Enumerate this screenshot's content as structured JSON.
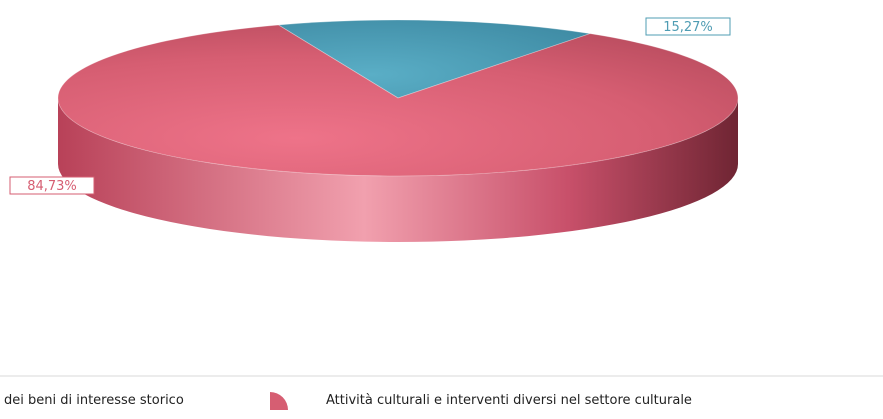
{
  "chart_data": {
    "type": "pie",
    "style": "3d-elliptical",
    "slices": [
      {
        "legend_label": "dei beni di interesse storico",
        "value": 15.27,
        "label": "15,27%",
        "color": "#4f9cb3"
      },
      {
        "legend_label": "Attività culturali e interventi diversi nel settore culturale",
        "value": 84.73,
        "label": "84,73%",
        "color": "#d65e72"
      }
    ],
    "legend": {
      "placement": "bottom"
    }
  }
}
